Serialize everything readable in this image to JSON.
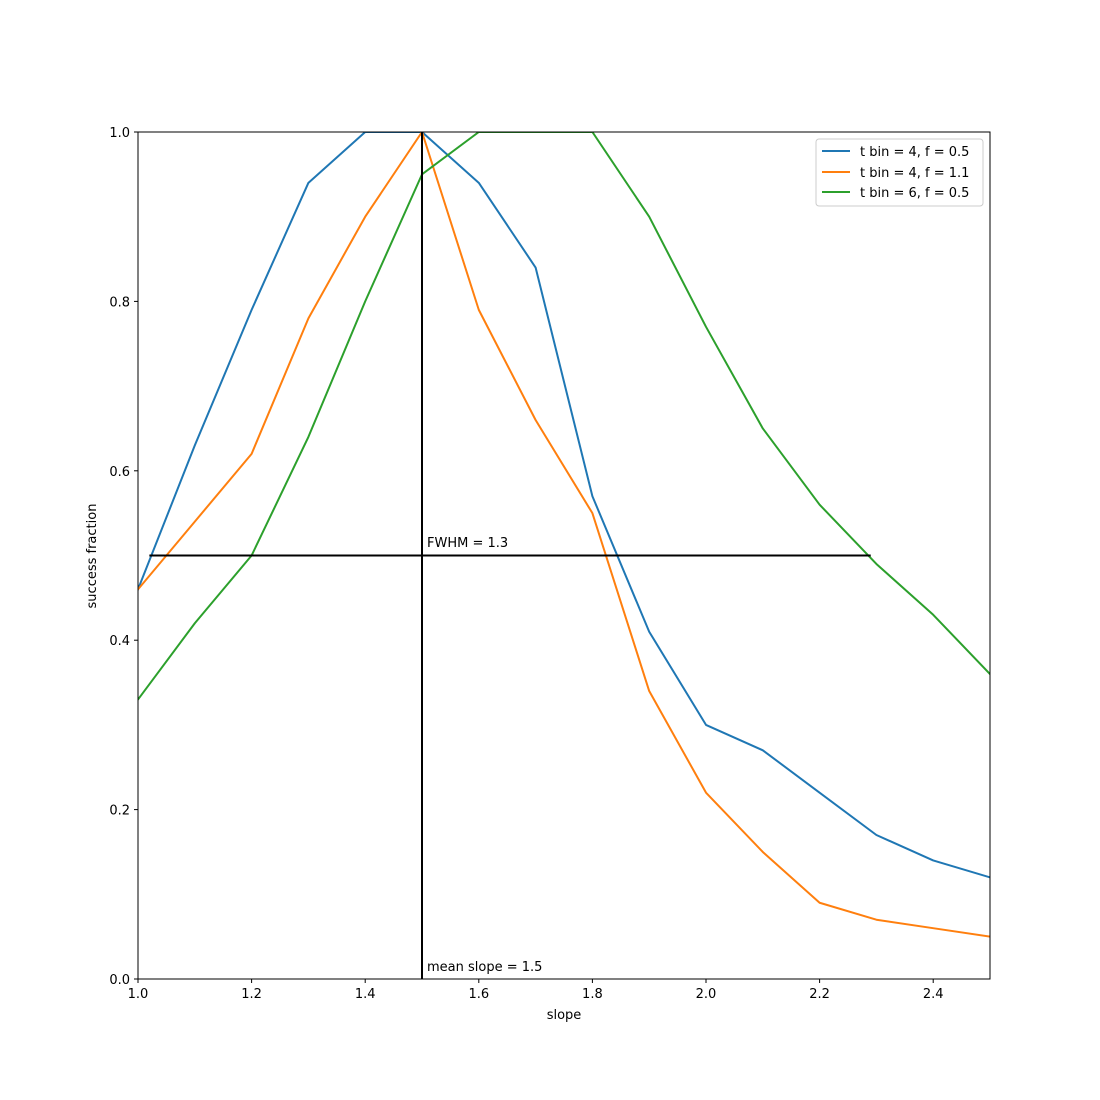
{
  "chart_data": {
    "type": "line",
    "title": "",
    "xlabel": "slope",
    "ylabel": "success fraction",
    "xlim": [
      1.0,
      2.5
    ],
    "ylim": [
      0.0,
      1.0
    ],
    "xticks": [
      "1.0",
      "1.2",
      "1.4",
      "1.6",
      "1.8",
      "2.0",
      "2.2",
      "2.4"
    ],
    "yticks": [
      "0.0",
      "0.2",
      "0.4",
      "0.6",
      "0.8",
      "1.0"
    ],
    "grid": false,
    "legend_position": "top-right",
    "x": [
      1.0,
      1.1,
      1.2,
      1.3,
      1.4,
      1.5,
      1.6,
      1.7,
      1.8,
      1.9,
      2.0,
      2.1,
      2.2,
      2.3,
      2.4,
      2.5
    ],
    "series": [
      {
        "name": "t bin = 4, f = 0.5",
        "color": "#1f77b4",
        "values": [
          0.46,
          0.63,
          0.79,
          0.94,
          1.0,
          1.0,
          0.94,
          0.84,
          0.57,
          0.41,
          0.3,
          0.27,
          0.22,
          0.17,
          0.14,
          0.12
        ]
      },
      {
        "name": "t bin = 4, f = 1.1",
        "color": "#ff7f0e",
        "values": [
          0.46,
          0.54,
          0.62,
          0.78,
          0.9,
          1.0,
          0.79,
          0.66,
          0.55,
          0.34,
          0.22,
          0.15,
          0.09,
          0.07,
          0.06,
          0.05
        ]
      },
      {
        "name": "t bin = 6, f = 0.5",
        "color": "#2ca02c",
        "values": [
          0.33,
          0.42,
          0.5,
          0.64,
          0.8,
          0.95,
          1.0,
          1.0,
          1.0,
          0.9,
          0.77,
          0.65,
          0.56,
          0.49,
          0.43,
          0.36
        ]
      }
    ],
    "annotations": {
      "vertical_line": {
        "x": 1.5,
        "label": "mean slope = 1.5",
        "color": "#000000"
      },
      "horizontal_line": {
        "y": 0.5,
        "x_from": 1.02,
        "x_to": 2.29,
        "label": "FWHM = 1.3",
        "color": "#000000"
      }
    }
  }
}
